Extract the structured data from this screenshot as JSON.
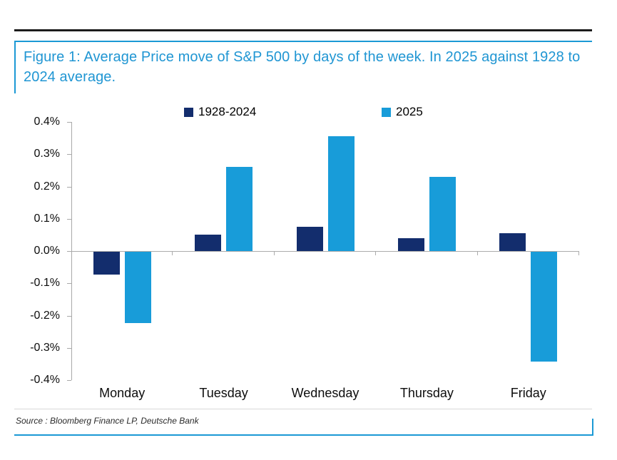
{
  "figure": {
    "title": "Figure 1: Average Price move of S&P 500 by days of the week. In 2025 against 1928 to 2024 average."
  },
  "source": {
    "text": "Source : Bloomberg Finance LP, Deutsche Bank"
  },
  "colors": {
    "title_blue": "#2096d3",
    "rule_blue": "#1b99d5",
    "top_rule_black": "#1c1c1c",
    "axis_gray": "#ababab",
    "series_1928_2024": "#132d6d",
    "series_2025": "#189cd9"
  },
  "chart_data": {
    "type": "bar",
    "title": "Average Price move of S&P 500 by days of the week, 2025 vs 1928-2024 average",
    "categories": [
      "Monday",
      "Tuesday",
      "Wednesday",
      "Thursday",
      "Friday"
    ],
    "series": [
      {
        "name": "1928-2024",
        "color": "#132d6d",
        "values": [
          -0.07,
          0.05,
          0.075,
          0.04,
          0.055
        ]
      },
      {
        "name": "2025",
        "color": "#189cd9",
        "values": [
          -0.22,
          0.26,
          0.355,
          0.23,
          -0.34
        ]
      }
    ],
    "unit": "%",
    "ylim": [
      -0.4,
      0.4
    ],
    "ytick_step": 0.1,
    "ytick_labels": [
      "0.4%",
      "0.3%",
      "0.2%",
      "0.1%",
      "0.0%",
      "-0.1%",
      "-0.2%",
      "-0.3%",
      "-0.4%"
    ],
    "xlabel": "",
    "ylabel": "",
    "legend_position": "top",
    "grid": "zero-line-only"
  }
}
